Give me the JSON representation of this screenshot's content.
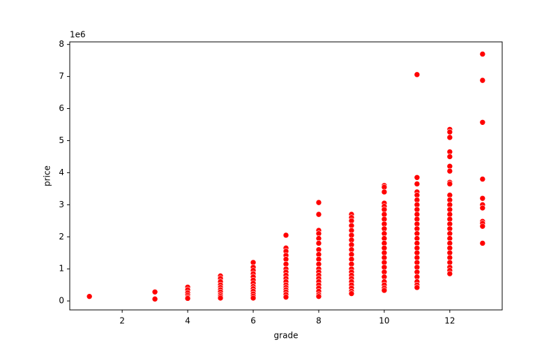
{
  "chart_data": {
    "type": "scatter",
    "x_label": "grade",
    "y_label": "price",
    "y_offset_label": "1e6",
    "color": "#ff0000",
    "xlim": [
      0.4,
      13.6
    ],
    "xticks": [
      2,
      4,
      6,
      8,
      10,
      12
    ],
    "ylim": [
      -0.28,
      8.08
    ],
    "yticks": [
      0,
      1,
      2,
      3,
      4,
      5,
      6,
      7,
      8
    ],
    "x": [
      1,
      3,
      3,
      4,
      4,
      4,
      4,
      4,
      4,
      5,
      5,
      5,
      5,
      5,
      5,
      5,
      5,
      5,
      5,
      6,
      6,
      6,
      6,
      6,
      6,
      6,
      6,
      6,
      6,
      6,
      6,
      6,
      7,
      7,
      7,
      7,
      7,
      7,
      7,
      7,
      7,
      7,
      7,
      7,
      7,
      7,
      7,
      7,
      7,
      8,
      8,
      8,
      8,
      8,
      8,
      8,
      8,
      8,
      8,
      8,
      8,
      8,
      8,
      8,
      8,
      8,
      8,
      8,
      8,
      9,
      9,
      9,
      9,
      9,
      9,
      9,
      9,
      9,
      9,
      9,
      9,
      9,
      9,
      9,
      9,
      9,
      9,
      9,
      9,
      9,
      10,
      10,
      10,
      10,
      10,
      10,
      10,
      10,
      10,
      10,
      10,
      10,
      10,
      10,
      10,
      10,
      10,
      10,
      10,
      10,
      10,
      10,
      10,
      10,
      11,
      11,
      11,
      11,
      11,
      11,
      11,
      11,
      11,
      11,
      11,
      11,
      11,
      11,
      11,
      11,
      11,
      11,
      11,
      11,
      11,
      11,
      11,
      11,
      11,
      12,
      12,
      12,
      12,
      12,
      12,
      12,
      12,
      12,
      12,
      12,
      12,
      12,
      12,
      12,
      12,
      12,
      12,
      12,
      12,
      12,
      12,
      12,
      12,
      12,
      12,
      12,
      13,
      13,
      13,
      13,
      13,
      13,
      13,
      13,
      13,
      13,
      13
    ],
    "values": [
      0.14,
      0.28,
      0.06,
      0.43,
      0.35,
      0.25,
      0.18,
      0.12,
      0.08,
      0.78,
      0.7,
      0.6,
      0.5,
      0.42,
      0.35,
      0.28,
      0.2,
      0.14,
      0.09,
      1.2,
      1.05,
      0.95,
      0.85,
      0.75,
      0.65,
      0.55,
      0.45,
      0.38,
      0.3,
      0.22,
      0.15,
      0.09,
      2.05,
      1.65,
      1.55,
      1.42,
      1.3,
      1.15,
      1.0,
      0.9,
      0.8,
      0.7,
      0.6,
      0.5,
      0.42,
      0.35,
      0.28,
      0.2,
      0.12,
      3.07,
      2.7,
      2.2,
      2.1,
      1.95,
      1.8,
      1.6,
      1.45,
      1.3,
      1.15,
      1.0,
      0.9,
      0.8,
      0.7,
      0.6,
      0.5,
      0.4,
      0.3,
      0.2,
      0.14,
      2.7,
      2.6,
      2.5,
      2.35,
      2.2,
      2.05,
      1.9,
      1.75,
      1.6,
      1.45,
      1.3,
      1.15,
      1.0,
      0.9,
      0.8,
      0.7,
      0.6,
      0.5,
      0.4,
      0.3,
      0.23,
      3.6,
      3.55,
      3.4,
      3.05,
      2.95,
      2.85,
      2.7,
      2.55,
      2.4,
      2.25,
      2.1,
      1.95,
      1.8,
      1.65,
      1.5,
      1.35,
      1.2,
      1.05,
      0.9,
      0.75,
      0.6,
      0.5,
      0.4,
      0.33,
      7.06,
      3.85,
      3.65,
      3.4,
      3.3,
      3.15,
      3.0,
      2.85,
      2.7,
      2.55,
      2.4,
      2.25,
      2.1,
      1.95,
      1.8,
      1.65,
      1.5,
      1.35,
      1.2,
      1.05,
      0.9,
      0.75,
      0.6,
      0.5,
      0.42,
      5.35,
      5.27,
      5.1,
      4.65,
      4.5,
      4.2,
      4.05,
      3.7,
      3.65,
      3.3,
      3.15,
      3.0,
      2.85,
      2.7,
      2.55,
      2.4,
      2.25,
      2.1,
      1.95,
      1.8,
      1.65,
      1.5,
      1.35,
      1.2,
      1.05,
      0.95,
      0.85,
      7.7,
      6.88,
      5.57,
      3.8,
      3.2,
      3.0,
      2.9,
      2.48,
      2.42,
      2.33,
      1.8
    ]
  }
}
